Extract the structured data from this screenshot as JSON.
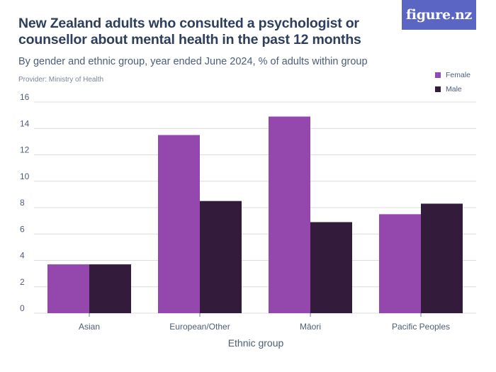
{
  "header": {
    "title": "New Zealand adults who consulted a psychologist or counsellor about mental health in the past 12 months",
    "subtitle": "By gender and ethnic group, year ended June 2024, % of adults within group",
    "provider": "Provider: Ministry of Health",
    "logo_text": "figure.nz"
  },
  "colors": {
    "female": "#9448ae",
    "male": "#331c3b",
    "grid": "#dcdcdc",
    "logo_bg": "#5b66c4"
  },
  "chart_data": {
    "type": "bar",
    "title": "New Zealand adults who consulted a psychologist or counsellor about mental health in the past 12 months",
    "xlabel": "Ethnic group",
    "ylabel": "",
    "ylim": [
      0,
      16
    ],
    "yticks": [
      0,
      2,
      4,
      6,
      8,
      10,
      12,
      14,
      16
    ],
    "categories": [
      "Asian",
      "European/Other",
      "Māori",
      "Pacific Peoples"
    ],
    "series": [
      {
        "name": "Female",
        "values": [
          3.7,
          13.5,
          14.9,
          7.5
        ]
      },
      {
        "name": "Male",
        "values": [
          3.7,
          8.5,
          6.9,
          8.3
        ]
      }
    ],
    "legend_position": "top-right",
    "grid": true
  }
}
